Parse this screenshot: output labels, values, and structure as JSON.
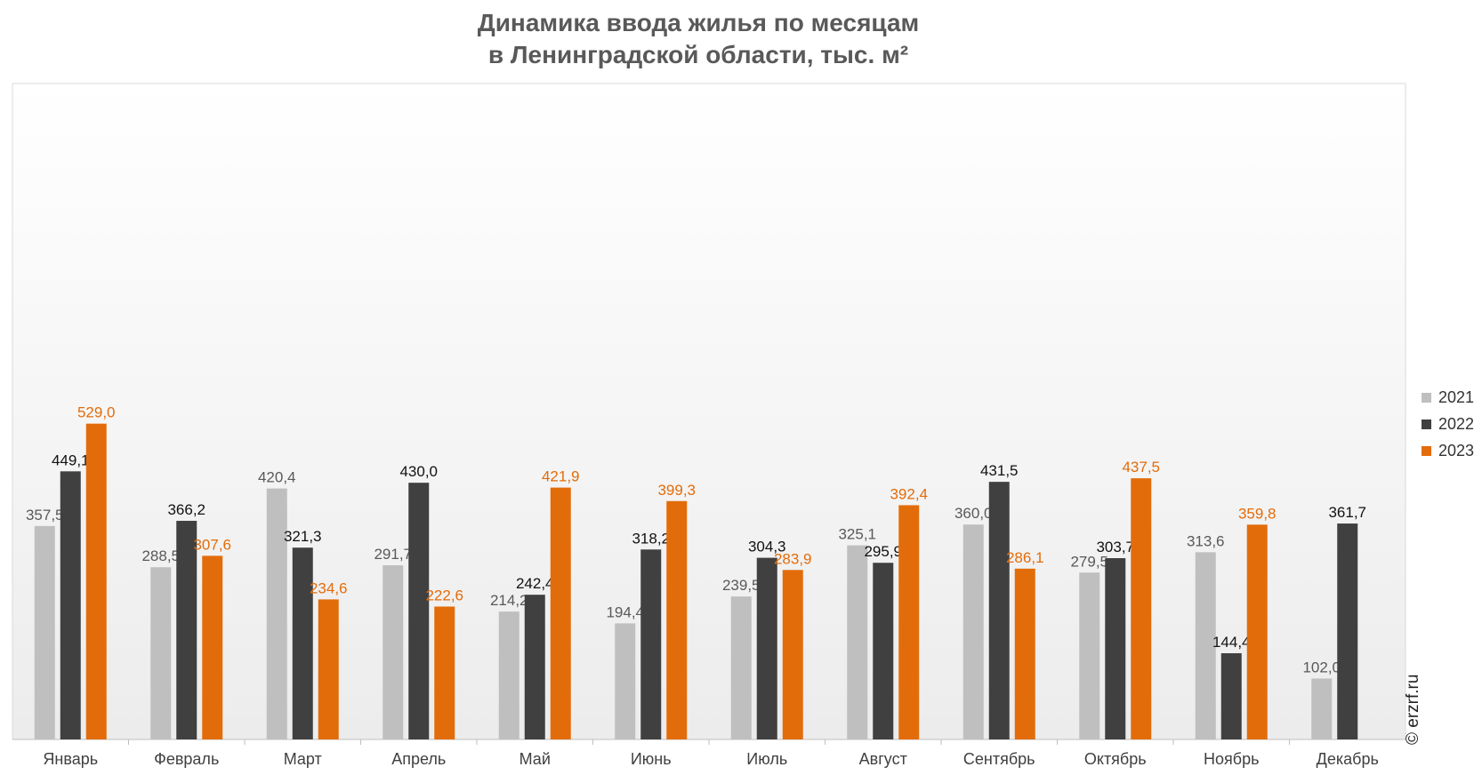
{
  "chart_data": {
    "type": "bar",
    "title": "Динамика ввода жилья по месяцам",
    "subtitle": "в Ленинградской области, тыс. м²",
    "categories": [
      "Январь",
      "Февраль",
      "Март",
      "Апрель",
      "Май",
      "Июнь",
      "Июль",
      "Август",
      "Сентябрь",
      "Октябрь",
      "Ноябрь",
      "Декабрь"
    ],
    "series": [
      {
        "name": "2021",
        "color": "#bfbfbf",
        "label_color": "#595959",
        "values": [
          357.5,
          288.5,
          420.4,
          291.7,
          214.2,
          194.4,
          239.5,
          325.1,
          360.0,
          279.5,
          313.6,
          102.0
        ],
        "labels": [
          "357,5",
          "288,5",
          "420,4",
          "291,7",
          "214,2",
          "194,4",
          "239,5",
          "325,1",
          "360,0",
          "279,5",
          "313,6",
          "102,0"
        ]
      },
      {
        "name": "2022",
        "color": "#404040",
        "label_color": "#111111",
        "values": [
          449.1,
          366.2,
          321.3,
          430.0,
          242.4,
          318.2,
          304.3,
          295.9,
          431.5,
          303.7,
          144.4,
          361.7
        ],
        "labels": [
          "449,1",
          "366,2",
          "321,3",
          "430,0",
          "242,4",
          "318,2",
          "304,3",
          "295,9",
          "431,5",
          "303,7",
          "144,4",
          "361,7"
        ]
      },
      {
        "name": "2023",
        "color": "#e36c0a",
        "label_color": "#e36c0a",
        "values": [
          529.0,
          307.6,
          234.6,
          222.6,
          421.9,
          399.3,
          283.9,
          392.4,
          286.1,
          437.5,
          359.8,
          null
        ],
        "labels": [
          "529,0",
          "307,6",
          "234,6",
          "222,6",
          "421,9",
          "399,3",
          "283,9",
          "392,4",
          "286,1",
          "437,5",
          "359,8",
          ""
        ]
      }
    ],
    "legend_position": "right",
    "grid": false,
    "ylim": [
      0,
      600
    ]
  },
  "watermark": "© erzrf.ru"
}
